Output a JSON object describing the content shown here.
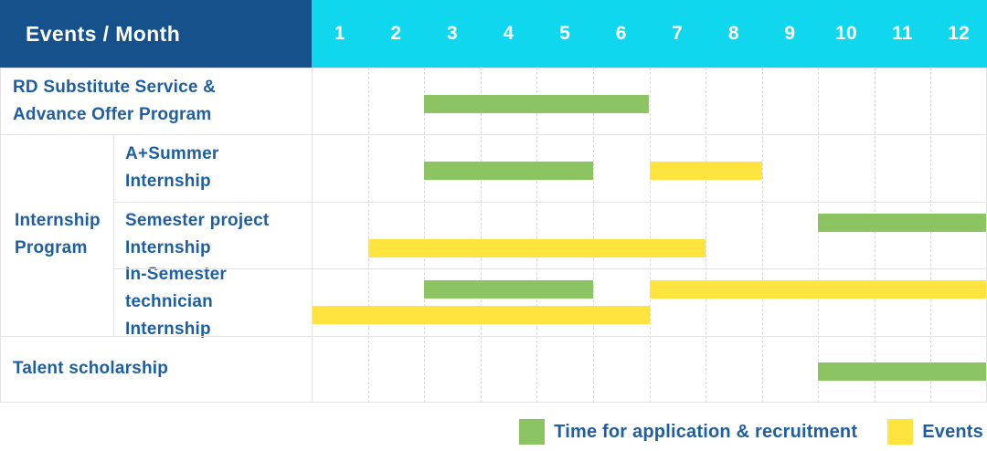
{
  "header": {
    "label": "Events / Month"
  },
  "colors": {
    "header_bg": "#15528b",
    "months_bg": "#0fd7ee",
    "bar_green": "#8cc464",
    "bar_yellow": "#ffe33e",
    "label_text": "#1e5fa3",
    "grid_solid": "#e3e3e3",
    "grid_dashed": "#d8d8d8"
  },
  "chart_data": {
    "type": "gantt",
    "title": "Events / Month",
    "months": [
      "1",
      "2",
      "3",
      "4",
      "5",
      "6",
      "7",
      "8",
      "9",
      "10",
      "11",
      "12"
    ],
    "x_range": [
      1,
      12
    ],
    "grid": true,
    "legend_position": "bottom-right",
    "rows": [
      {
        "group": null,
        "label": "RD Substitute Service &\nAdvance Offer Program",
        "bars": [
          {
            "kind": "recruitment",
            "start": 3,
            "end": 6,
            "lane": "center"
          }
        ]
      },
      {
        "group": "Internship\nProgram",
        "label": "A+Summer\nInternship",
        "bars": [
          {
            "kind": "recruitment",
            "start": 3,
            "end": 5,
            "lane": "center"
          },
          {
            "kind": "events",
            "start": 7,
            "end": 8,
            "lane": "center"
          }
        ]
      },
      {
        "group": "Internship\nProgram",
        "label": "Semester project\nInternship",
        "bars": [
          {
            "kind": "recruitment",
            "start": 10,
            "end": 12,
            "lane": "top"
          },
          {
            "kind": "events",
            "start": 2,
            "end": 7,
            "lane": "bottom"
          }
        ]
      },
      {
        "group": "Internship\nProgram",
        "label": "In-Semester\ntechnician Internship",
        "bars": [
          {
            "kind": "recruitment",
            "start": 3,
            "end": 5,
            "lane": "top"
          },
          {
            "kind": "events",
            "start": 7,
            "end": 12,
            "lane": "top"
          },
          {
            "kind": "events",
            "start": 1,
            "end": 6,
            "lane": "bottom"
          }
        ]
      },
      {
        "group": null,
        "label": "Talent scholarship",
        "bars": [
          {
            "kind": "recruitment",
            "start": 10,
            "end": 12,
            "lane": "center"
          }
        ]
      }
    ],
    "legend": [
      {
        "kind": "recruitment",
        "label": "Time for application & recruitment",
        "color": "#8cc464"
      },
      {
        "kind": "events",
        "label": "Events",
        "color": "#ffe33e"
      }
    ]
  }
}
